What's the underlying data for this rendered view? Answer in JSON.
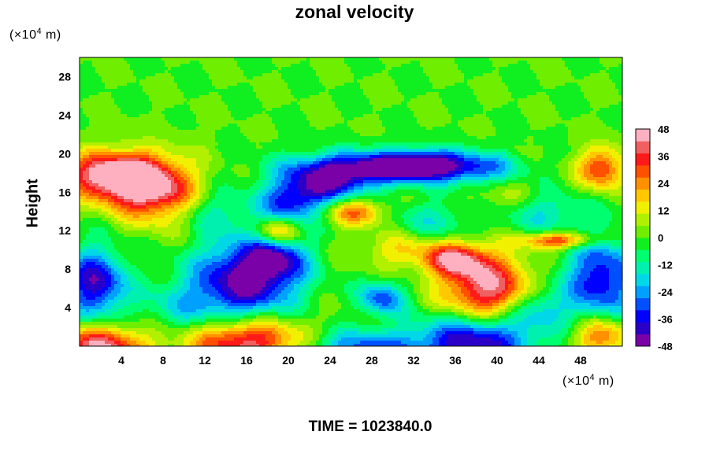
{
  "chart_data": {
    "type": "heatmap",
    "title": "zonal velocity",
    "ylabel": "Height",
    "x_unit_prefix": "(×10",
    "x_unit_exp": "4",
    "x_unit_suffix": " m)",
    "y_unit_prefix": "(×10",
    "y_unit_exp": "4",
    "y_unit_suffix": " m)",
    "xlim": [
      0,
      52
    ],
    "ylim": [
      0,
      30
    ],
    "x_ticks": [
      4,
      8,
      12,
      16,
      20,
      24,
      28,
      32,
      36,
      40,
      44,
      48
    ],
    "y_ticks": [
      4,
      8,
      12,
      16,
      20,
      24,
      28
    ],
    "colorbar": {
      "min": -48,
      "max": 48,
      "ticks": [
        48,
        36,
        24,
        12,
        0,
        -12,
        -24,
        -36,
        -48
      ],
      "colors": [
        "#7a00a8",
        "#2a00c8",
        "#0000ff",
        "#0050ff",
        "#00a0ff",
        "#00d8e8",
        "#00f0b0",
        "#00ff70",
        "#10f020",
        "#70ee00",
        "#b0f000",
        "#f0f000",
        "#ffc800",
        "#ff9000",
        "#ff5000",
        "#ff1a1a",
        "#f06060",
        "#ffb0c0"
      ]
    },
    "background_value": 0,
    "features": [
      {
        "x": 5,
        "y": 17,
        "sx": 3,
        "sy": 2,
        "value": 42
      },
      {
        "x": 2,
        "y": 18,
        "sx": 3,
        "sy": 1.5,
        "value": 30
      },
      {
        "x": 8,
        "y": 16,
        "sx": 2.5,
        "sy": 2.5,
        "value": 25
      },
      {
        "x": 28,
        "y": 18.5,
        "sx": 5,
        "sy": 1.2,
        "value": -46
      },
      {
        "x": 23,
        "y": 16.5,
        "sx": 3,
        "sy": 1.5,
        "value": -35
      },
      {
        "x": 33,
        "y": 19,
        "sx": 2.5,
        "sy": 1,
        "value": -30
      },
      {
        "x": 38,
        "y": 18.5,
        "sx": 3,
        "sy": 1.2,
        "value": -25
      },
      {
        "x": 20,
        "y": 14.5,
        "sx": 2,
        "sy": 1.5,
        "value": -25
      },
      {
        "x": 26.5,
        "y": 14,
        "sx": 2,
        "sy": 1,
        "value": 30
      },
      {
        "x": 19,
        "y": 12,
        "sx": 1.5,
        "sy": 1,
        "value": 28
      },
      {
        "x": 50,
        "y": 18.5,
        "sx": 1.5,
        "sy": 1.5,
        "value": 35
      },
      {
        "x": 46,
        "y": 11,
        "sx": 2.5,
        "sy": 0.6,
        "value": 35
      },
      {
        "x": 44,
        "y": 14,
        "sx": 3,
        "sy": 1.5,
        "value": -20
      },
      {
        "x": 16,
        "y": 7,
        "sx": 3.5,
        "sy": 3,
        "value": -46
      },
      {
        "x": 19,
        "y": 9,
        "sx": 2,
        "sy": 1.5,
        "value": -25
      },
      {
        "x": 1.5,
        "y": 6.5,
        "sx": 2,
        "sy": 2.5,
        "value": -42
      },
      {
        "x": 50,
        "y": 7,
        "sx": 2.5,
        "sy": 3,
        "value": -38
      },
      {
        "x": 39,
        "y": 6,
        "sx": 3,
        "sy": 2.5,
        "value": 44
      },
      {
        "x": 36,
        "y": 9,
        "sx": 2,
        "sy": 1.2,
        "value": 35
      },
      {
        "x": 29,
        "y": 5,
        "sx": 1.5,
        "sy": 1.3,
        "value": -30
      },
      {
        "x": 38,
        "y": 0.5,
        "sx": 4,
        "sy": 2,
        "value": -44
      },
      {
        "x": 16,
        "y": 0.5,
        "sx": 4,
        "sy": 1.8,
        "value": 44
      },
      {
        "x": 2,
        "y": 0,
        "sx": 3,
        "sy": 1.5,
        "value": 44
      },
      {
        "x": 50,
        "y": 1,
        "sx": 2,
        "sy": 1.5,
        "value": 30
      },
      {
        "x": 27,
        "y": 0,
        "sx": 4,
        "sy": 1.2,
        "value": -28
      },
      {
        "x": 10,
        "y": 4,
        "sx": 3,
        "sy": 2,
        "value": -15
      },
      {
        "x": 44,
        "y": 4,
        "sx": 2,
        "sy": 1.5,
        "value": -20
      },
      {
        "x": 31,
        "y": 10,
        "sx": 3,
        "sy": 1.5,
        "value": 15
      },
      {
        "x": 41,
        "y": 15,
        "sx": 3,
        "sy": 1.5,
        "value": 12
      },
      {
        "x": 13,
        "y": 14,
        "sx": 2.5,
        "sy": 1.5,
        "value": -12
      },
      {
        "x": 34,
        "y": 13,
        "sx": 3,
        "sy": 1.5,
        "value": -15
      }
    ]
  },
  "caption": "TIME = 1023840.0"
}
